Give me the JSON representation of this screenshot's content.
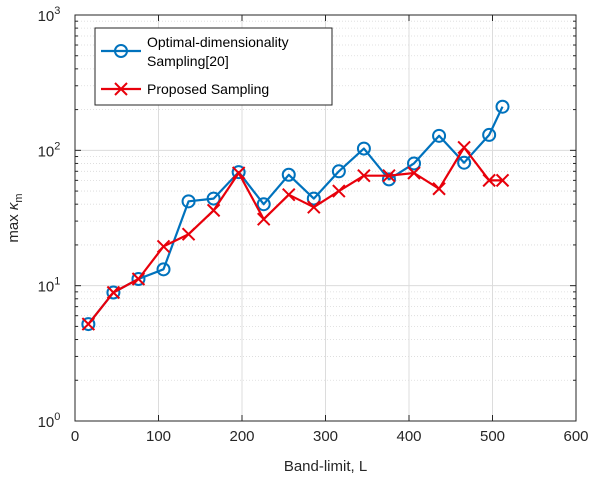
{
  "chart_data": {
    "type": "line",
    "xlabel": "Band-limit, L",
    "ylabel": {
      "prefix": "max ",
      "symbol": "κ",
      "subscript": "m"
    },
    "xlim": [
      0,
      600
    ],
    "ylim": [
      1,
      1000
    ],
    "yscale": "log",
    "grid": true,
    "legend_position": "top-left",
    "x_ticks": [
      {
        "value": 0,
        "label": "0"
      },
      {
        "value": 100,
        "label": "100"
      },
      {
        "value": 200,
        "label": "200"
      },
      {
        "value": 300,
        "label": "300"
      },
      {
        "value": 400,
        "label": "400"
      },
      {
        "value": 500,
        "label": "500"
      },
      {
        "value": 600,
        "label": "600"
      }
    ],
    "y_ticks": [
      {
        "value": 1,
        "base": "10",
        "exp": "0"
      },
      {
        "value": 10,
        "base": "10",
        "exp": "1"
      },
      {
        "value": 100,
        "base": "10",
        "exp": "2"
      },
      {
        "value": 1000,
        "base": "10",
        "exp": "3"
      }
    ],
    "series": [
      {
        "name": "Optimal-dimensionality Sampling[20]",
        "legend_lines": [
          "Optimal-dimensionality",
          "Sampling[20]"
        ],
        "color": "#0072BD",
        "marker": "circle",
        "x": [
          16,
          46,
          76,
          106,
          136,
          166,
          196,
          226,
          256,
          286,
          316,
          346,
          376,
          406,
          436,
          466,
          496,
          512
        ],
        "y": [
          5.2,
          8.9,
          11.2,
          13.2,
          42,
          44,
          69,
          40,
          66,
          44,
          70,
          103,
          61,
          80,
          128,
          81,
          130,
          210
        ]
      },
      {
        "name": "Proposed Sampling",
        "legend_lines": [
          "Proposed Sampling"
        ],
        "color": "#E8000B",
        "marker": "x",
        "x": [
          16,
          46,
          76,
          106,
          136,
          166,
          196,
          226,
          256,
          286,
          316,
          346,
          376,
          406,
          436,
          466,
          496,
          512
        ],
        "y": [
          5.2,
          8.9,
          11.2,
          19.5,
          24,
          36,
          68,
          31,
          47,
          38,
          50,
          65,
          65,
          68,
          52,
          105,
          60,
          60
        ]
      }
    ]
  }
}
